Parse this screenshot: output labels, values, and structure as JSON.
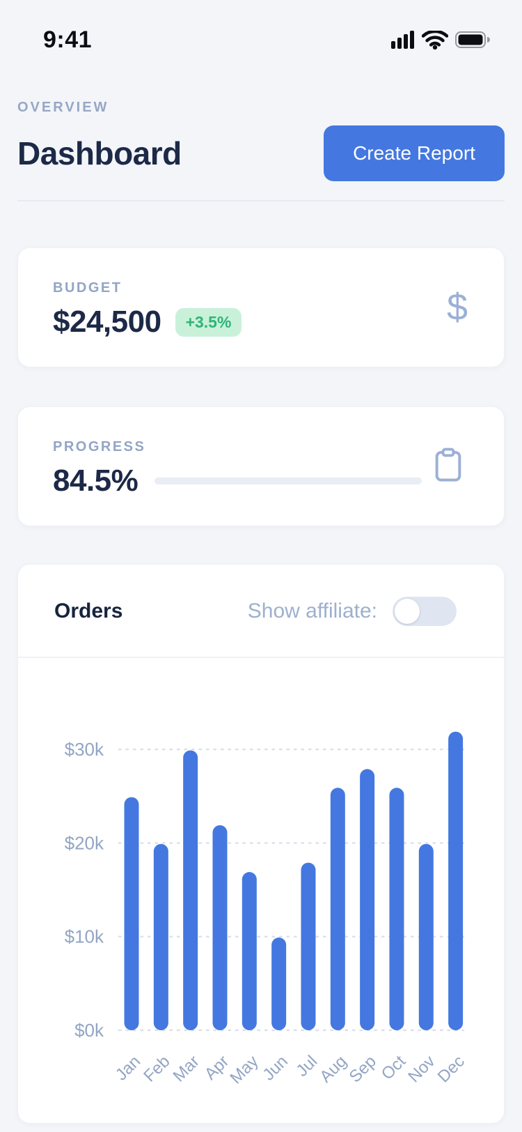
{
  "status_bar": {
    "time": "9:41",
    "icons": [
      "cellular-signal",
      "wifi",
      "battery-full"
    ]
  },
  "header": {
    "eyebrow": "OVERVIEW",
    "title": "Dashboard",
    "create_report_label": "Create Report"
  },
  "budget_card": {
    "label": "BUDGET",
    "value": "$24,500",
    "delta_badge": "+3.5%",
    "icon": "dollar-sign"
  },
  "progress_card": {
    "label": "PROGRESS",
    "value": "84.5%",
    "percent": 84.5,
    "icon": "clipboard"
  },
  "orders_card": {
    "title": "Orders",
    "toggle_label": "Show affiliate:",
    "toggle_on": false
  },
  "chart_data": {
    "type": "bar",
    "title": "Orders",
    "categories": [
      "Jan",
      "Feb",
      "Mar",
      "Apr",
      "May",
      "Jun",
      "Jul",
      "Aug",
      "Sep",
      "Oct",
      "Nov",
      "Dec"
    ],
    "values": [
      24.9,
      19.9,
      29.9,
      21.9,
      16.9,
      9.9,
      17.9,
      25.9,
      27.9,
      25.9,
      19.9,
      31.9
    ],
    "unit": "USD thousands",
    "xlabel": "",
    "ylabel": "",
    "ylim": [
      0,
      34
    ],
    "y_ticks": [
      {
        "v": 30,
        "label": "$30k"
      },
      {
        "v": 20,
        "label": "$20k"
      },
      {
        "v": 10,
        "label": "$10k"
      },
      {
        "v": 0,
        "label": "$0k"
      }
    ],
    "grid": "horizontal-dotted",
    "legend": "none",
    "bar_color": "#4478e0"
  },
  "colors": {
    "page_bg": "#f3f5f9",
    "accent_blue": "#4478e0",
    "navy_text": "#1c2947",
    "muted_label": "#93a5c4",
    "badge_green_bg": "#c9f1da",
    "badge_green_text": "#2eb477",
    "track_gray": "#e9edf4",
    "grid_line": "#dadfeb",
    "icon_periwinkle": "#9cb0d6"
  }
}
